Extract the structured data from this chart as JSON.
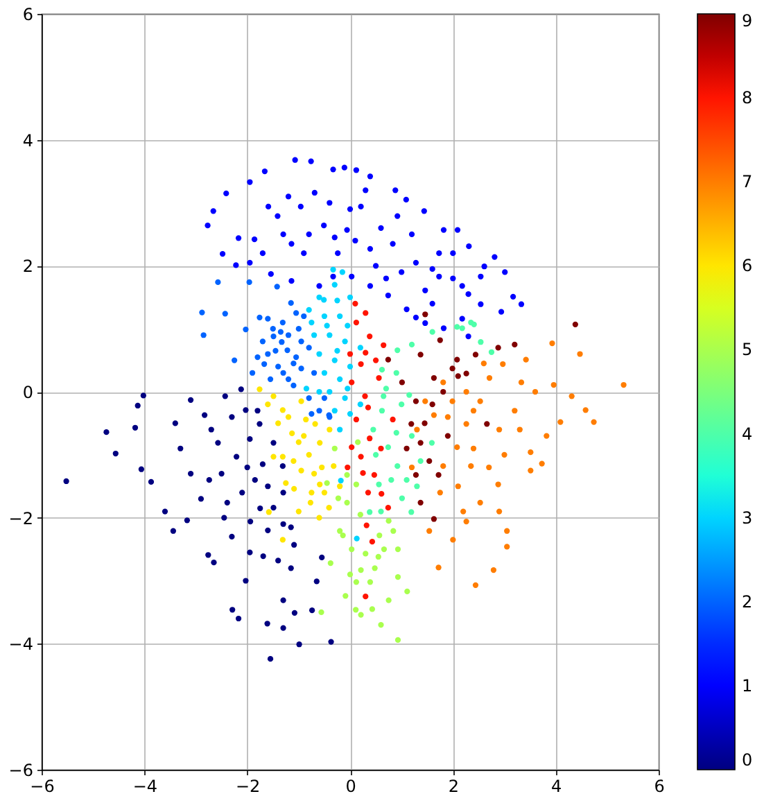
{
  "chart_data": {
    "type": "scatter",
    "xlim": [
      -6,
      6
    ],
    "ylim": [
      -6,
      6
    ],
    "xticks": [
      -6,
      -4,
      -2,
      0,
      2,
      4,
      6
    ],
    "yticks": [
      -6,
      -4,
      -2,
      0,
      2,
      4,
      6
    ],
    "grid": true,
    "marker": "circle",
    "clim": [
      0,
      9
    ],
    "cticks": [
      0,
      1,
      2,
      3,
      4,
      5,
      6,
      7,
      8,
      9
    ],
    "series": [
      {
        "x": [
          -5.52,
          -4.74,
          -4.56,
          -4.02,
          -4.13,
          -4.18,
          -4.06,
          -3.87,
          -3.6,
          -3.44,
          -3.1,
          -2.83,
          -2.74,
          -3.17,
          -2.65,
          -2.29,
          -2.17,
          -2.03,
          -1.55,
          -1.61,
          -1.3,
          -0.99,
          -1.08,
          -0.74,
          -0.37,
          -0.65,
          -1.3,
          -0.55,
          -2.43,
          -2.12,
          -2.03,
          -1.76,
          -1.49,
          -1.31,
          -1.3,
          -1.49,
          -1.94,
          -2.39,
          -2.21,
          -1.85,
          -2.57,
          -1.09,
          -1.4,
          -1.69,
          -1.15,
          -2.0,
          -1.6,
          -2.76,
          -3.3,
          -1.8,
          -2.3,
          -1.95,
          -2.5,
          -2.1,
          -1.75,
          -1.6,
          -2.3,
          -1.95,
          -2.9,
          -3.1,
          -2.7,
          -1.7,
          -1.3,
          -1.15,
          -2.45,
          -3.4
        ],
        "values": [
          -1.42,
          -0.64,
          -0.98,
          -0.06,
          -0.22,
          -0.57,
          -1.23,
          -1.43,
          -1.9,
          -2.21,
          -0.13,
          -0.37,
          -1.4,
          -2.04,
          -2.71,
          -3.46,
          -3.6,
          -3.0,
          -4.24,
          -3.68,
          -3.75,
          -4.01,
          -3.51,
          -3.47,
          -3.97,
          -3.01,
          -3.31,
          -2.63,
          -0.07,
          0.04,
          -0.29,
          -0.51,
          -0.81,
          -1.18,
          -1.6,
          -1.84,
          -2.06,
          -1.76,
          -1.03,
          -1.4,
          -0.81,
          -2.43,
          -2.68,
          -2.61,
          -2.15,
          -1.2,
          -1.5,
          -2.59,
          -0.9,
          -0.3,
          -0.4,
          -0.75,
          -1.3,
          -1.6,
          -1.85,
          -2.2,
          -2.3,
          -2.55,
          -1.7,
          -1.3,
          -0.6,
          -1.15,
          -2.1,
          -2.8,
          -2.0,
          -0.5
        ],
        "cvalues": [
          0,
          0,
          0,
          0,
          0,
          0,
          0,
          0,
          0,
          0,
          0,
          0,
          0,
          0,
          0,
          0,
          0,
          0,
          0,
          0,
          0,
          0,
          0,
          0,
          0,
          0,
          0,
          0,
          0,
          0,
          0,
          0,
          0,
          0,
          0,
          0,
          0,
          0,
          0,
          0,
          0,
          0,
          0,
          0,
          0,
          0,
          0,
          0,
          0,
          0,
          0,
          0,
          0,
          0,
          0,
          0,
          0,
          0,
          0,
          0,
          0,
          0,
          0,
          0,
          0,
          0
        ]
      },
      {
        "x": [
          -2.77,
          -2.66,
          -2.41,
          -1.95,
          -1.66,
          -1.07,
          -0.76,
          -0.33,
          -0.11,
          0.12,
          0.39,
          0.88,
          1.09,
          1.44,
          1.82,
          2.09,
          2.31,
          2.61,
          2.81,
          3.01,
          3.33,
          3.17,
          2.94,
          2.54,
          2.18,
          1.82,
          1.46,
          1.1,
          0.74,
          0.39,
          0.03,
          -0.33,
          -0.6,
          -1.14,
          -1.54,
          -1.95,
          -2.22,
          -2.48,
          -2.17,
          -1.41,
          -0.96,
          -0.51,
          -0.06,
          0.39,
          0.83,
          1.28,
          1.73,
          1.46,
          0.21,
          -0.69,
          -1.59,
          -1.86,
          -1.14,
          0.92,
          2.18,
          2.54,
          1.73,
          -0.24,
          1.28,
          2.3,
          -1.2,
          -0.8,
          -0.4,
          0.0,
          0.1,
          0.6,
          0.5,
          1.0,
          1.2,
          1.6,
          2.0,
          2.0,
          2.3,
          -1.7,
          -1.3,
          -0.9,
          -0.3,
          0.3,
          0.7,
          1.6
        ],
        "values": [
          2.64,
          2.87,
          3.15,
          3.33,
          3.5,
          3.68,
          3.66,
          3.53,
          3.56,
          3.52,
          3.42,
          3.2,
          3.05,
          2.87,
          2.57,
          2.57,
          2.31,
          1.99,
          2.14,
          1.9,
          1.39,
          1.51,
          1.27,
          1.39,
          1.16,
          1.01,
          1.09,
          1.31,
          1.53,
          1.68,
          1.83,
          1.83,
          1.68,
          1.76,
          1.87,
          2.05,
          2.01,
          2.19,
          2.44,
          2.79,
          2.94,
          2.64,
          2.57,
          2.27,
          2.35,
          2.05,
          1.83,
          1.61,
          2.94,
          3.16,
          2.94,
          2.42,
          2.35,
          2.79,
          1.68,
          1.83,
          2.2,
          2.2,
          1.18,
          0.88,
          3.1,
          2.5,
          3.0,
          2.9,
          2.4,
          2.6,
          2.0,
          1.9,
          2.5,
          1.95,
          1.8,
          2.2,
          1.55,
          2.2,
          2.5,
          2.2,
          2.45,
          3.2,
          1.8,
          1.4
        ],
        "cvalues": [
          1,
          1,
          1,
          1,
          1,
          1,
          1,
          1,
          1,
          1,
          1,
          1,
          1,
          1,
          1,
          1,
          1,
          1,
          1,
          1,
          1,
          1,
          1,
          1,
          1,
          1,
          1,
          1,
          1,
          1,
          1,
          1,
          1,
          1,
          1,
          1,
          1,
          1,
          1,
          1,
          1,
          1,
          1,
          1,
          1,
          1,
          1,
          1,
          1,
          1,
          1,
          1,
          1,
          1,
          1,
          1,
          1,
          1,
          1,
          1,
          1,
          1,
          1,
          1,
          1,
          1,
          1,
          1,
          1,
          1,
          1,
          1,
          1,
          1,
          1,
          1,
          1,
          1,
          1,
          1
        ]
      },
      {
        "x": [
          -2.88,
          -2.85,
          -2.57,
          -2.43,
          -2.25,
          -2.03,
          -1.96,
          -1.76,
          -1.6,
          -1.42,
          -1.15,
          -1.49,
          -1.33,
          -1.22,
          -0.95,
          -1.67,
          -1.31,
          -1.0,
          -1.7,
          -1.4,
          -1.1,
          -0.8,
          -0.8,
          -0.6,
          -0.4,
          -0.5,
          -1.2,
          -1.9,
          -0.9,
          -1.6,
          -0.75,
          -0.41,
          -1.05,
          -1.35,
          -0.7,
          -1.5,
          -1.2,
          -0.95,
          -1.45,
          -1.1,
          -1.55,
          -1.8,
          -1.05,
          -1.3
        ],
        "values": [
          1.26,
          0.9,
          1.74,
          1.24,
          0.5,
          0.99,
          1.74,
          1.18,
          1.16,
          1.67,
          1.41,
          0.88,
          0.79,
          0.66,
          0.37,
          0.44,
          1.1,
          1.0,
          0.8,
          0.4,
          0.1,
          0.7,
          -0.1,
          -0.3,
          -0.4,
          -0.1,
          0.2,
          0.3,
          1.2,
          0.6,
          -0.35,
          -0.37,
          0.55,
          0.95,
          0.3,
          1.0,
          0.9,
          0.8,
          0.65,
          0.45,
          0.2,
          0.55,
          1.25,
          0.3
        ],
        "cvalues": [
          2,
          2,
          2,
          2,
          2,
          2,
          2,
          2,
          2,
          2,
          2,
          2,
          2,
          2,
          2,
          2,
          2,
          2,
          2,
          2,
          2,
          2,
          2,
          2,
          2,
          2,
          2,
          2,
          2,
          2,
          2,
          2,
          2,
          2,
          2,
          2,
          2,
          2,
          2,
          2,
          2,
          2,
          2,
          2
        ]
      },
      {
        "x": [
          -0.6,
          -0.3,
          0.0,
          -0.5,
          -0.2,
          -0.05,
          -0.7,
          -0.4,
          -0.1,
          0.2,
          -0.6,
          -0.3,
          0.0,
          -0.5,
          -0.2,
          -0.05,
          -0.4,
          -0.1,
          -0.3,
          0.0,
          -0.8,
          -0.85,
          -0.25,
          -0.15,
          -0.6,
          -0.2,
          0.2,
          -0.18,
          0.13,
          -0.33,
          -0.51,
          -0.75,
          -0.45,
          -0.25
        ],
        "values": [
          1.5,
          1.7,
          1.5,
          1.2,
          1.2,
          1.05,
          0.9,
          0.9,
          0.8,
          0.7,
          0.6,
          0.5,
          0.4,
          0.3,
          0.2,
          0.05,
          0.0,
          -0.1,
          -0.3,
          -0.35,
          1.3,
          0.05,
          1.45,
          1.9,
          0.0,
          -0.6,
          -0.2,
          -1.41,
          -2.33,
          1.94,
          1.46,
          1.1,
          1.05,
          0.65
        ],
        "cvalues": [
          3,
          3,
          3,
          3,
          3,
          3,
          3,
          3,
          3,
          3,
          3,
          3,
          3,
          3,
          3,
          3,
          3,
          3,
          3,
          3,
          3,
          3,
          3,
          3,
          3,
          3,
          3,
          3,
          3,
          3,
          3,
          3,
          3,
          3
        ]
      },
      {
        "x": [
          0.62,
          0.92,
          1.2,
          2.08,
          2.35,
          1.6,
          0.65,
          0.9,
          0.74,
          0.92,
          1.1,
          1.01,
          1.19,
          0.56,
          1.37,
          1.59,
          2.75,
          0.38,
          2.41,
          2.18,
          2.54,
          0.7,
          0.9,
          0.62,
          1.0,
          1.2,
          0.5,
          0.8,
          1.3,
          0.45,
          1.15,
          0.6
        ],
        "values": [
          0.35,
          0.66,
          0.75,
          1.03,
          1.1,
          0.95,
          -0.07,
          -0.65,
          -0.88,
          -1.18,
          -1.4,
          -1.69,
          -1.91,
          -1.47,
          -1.1,
          -0.81,
          0.63,
          -1.91,
          1.07,
          1.01,
          0.79,
          0.05,
          0.3,
          -0.3,
          -0.2,
          -0.7,
          -1.0,
          -1.4,
          -1.5,
          -0.6,
          -0.05,
          -1.9
        ],
        "cvalues": [
          4,
          4,
          4,
          4,
          4,
          4,
          4,
          4,
          4,
          4,
          4,
          4,
          4,
          4,
          4,
          4,
          4,
          4,
          4,
          4,
          4,
          4,
          4,
          4,
          4,
          4,
          4,
          4,
          4,
          4,
          4,
          4
        ]
      },
      {
        "x": [
          -0.2,
          0.03,
          0.21,
          0.39,
          0.48,
          0.66,
          0.93,
          1.11,
          0.75,
          0.43,
          0.21,
          0.93,
          -0.56,
          -0.38,
          -0.09,
          0.12,
          0.55,
          -0.06,
          0.12,
          -0.06,
          0.57,
          0.84,
          0.93,
          -0.23,
          -0.14,
          0.3,
          0.11,
          0.2,
          0.0,
          0.6,
          -0.3,
          0.15,
          -0.45,
          0.75
        ],
        "values": [
          -2.21,
          -2.5,
          -2.83,
          -3.02,
          -2.8,
          -2.5,
          -2.94,
          -3.17,
          -3.31,
          -3.45,
          -3.54,
          -3.94,
          -3.5,
          -2.72,
          -3.24,
          -3.02,
          -2.62,
          -1.76,
          -1.47,
          -1.32,
          -2.28,
          -2.21,
          -2.5,
          -1.69,
          -2.28,
          -2.57,
          -3.46,
          -1.95,
          -2.9,
          -3.7,
          -0.9,
          -0.8,
          -1.45,
          -2.05
        ],
        "cvalues": [
          5,
          5,
          5,
          5,
          5,
          5,
          5,
          5,
          5,
          5,
          5,
          5,
          5,
          5,
          5,
          5,
          5,
          5,
          5,
          5,
          5,
          5,
          5,
          5,
          5,
          5,
          5,
          5,
          5,
          5,
          5,
          5,
          5,
          5
        ]
      },
      {
        "x": [
          -1.76,
          -1.49,
          -1.31,
          -0.95,
          -0.68,
          -1.13,
          -1.31,
          -0.95,
          -0.59,
          -0.77,
          -0.41,
          -1.09,
          -1.49,
          -0.59,
          -0.32,
          -1.31,
          -1.58,
          -0.86,
          -1.2,
          -0.8,
          -1.0,
          -0.6,
          -1.4,
          -1.1,
          -0.4,
          -0.7,
          -1.6,
          -0.2,
          -1.0,
          -0.5,
          -0.9,
          -1.25,
          -0.55,
          -0.75
        ],
        "values": [
          0.04,
          -0.07,
          -0.29,
          -0.15,
          -0.51,
          -0.66,
          -1.03,
          -1.25,
          -1.47,
          -1.76,
          -1.84,
          -1.54,
          -1.03,
          -0.81,
          -1.18,
          -2.35,
          -1.91,
          -0.44,
          -0.4,
          -1.0,
          -1.9,
          -2.0,
          -0.5,
          -1.1,
          -0.6,
          -1.3,
          -0.2,
          -1.5,
          -0.8,
          -1.6,
          -0.7,
          -1.45,
          -1.2,
          -1.6
        ],
        "cvalues": [
          6,
          6,
          6,
          6,
          6,
          6,
          6,
          6,
          6,
          6,
          6,
          6,
          6,
          6,
          6,
          6,
          6,
          6,
          6,
          6,
          6,
          6,
          6,
          6,
          6,
          6,
          6,
          6,
          6,
          6,
          6,
          6,
          6,
          6
        ]
      },
      {
        "x": [
          5.32,
          4.74,
          4.58,
          4.47,
          3.93,
          3.96,
          4.31,
          4.09,
          3.82,
          3.51,
          3.73,
          3.51,
          3.33,
          3.42,
          2.97,
          2.71,
          2.53,
          2.26,
          2.08,
          1.81,
          2.35,
          2.88,
          2.53,
          2.26,
          2.0,
          1.72,
          2.44,
          2.79,
          3.05,
          3.05,
          1.54,
          1.2,
          1.46,
          1.63,
          1.99,
          1.81,
          2.26,
          2.6,
          2.9,
          3.2,
          2.1,
          1.3,
          3.0,
          2.4,
          1.9,
          2.4,
          2.7,
          2.2,
          3.3,
          1.75,
          2.9,
          3.6
        ],
        "values": [
          0.11,
          -0.48,
          -0.29,
          0.6,
          0.77,
          0.11,
          -0.07,
          -0.48,
          -0.7,
          -0.96,
          -1.14,
          -1.25,
          0.15,
          0.51,
          0.44,
          0.22,
          -0.15,
          -0.51,
          -0.88,
          -1.18,
          -1.18,
          -1.47,
          -1.76,
          -2.06,
          -2.35,
          -2.79,
          -3.07,
          -2.83,
          -2.46,
          -2.21,
          -2.21,
          -1.2,
          -0.15,
          -0.37,
          -0.15,
          0.15,
          0.0,
          0.45,
          -0.6,
          -0.3,
          -1.5,
          -0.6,
          -1.0,
          -0.9,
          -0.4,
          -0.3,
          -1.2,
          -1.9,
          -0.6,
          -1.6,
          -1.9,
          0.0
        ],
        "cvalues": [
          7,
          7,
          7,
          7,
          7,
          7,
          7,
          7,
          7,
          7,
          7,
          7,
          7,
          7,
          7,
          7,
          7,
          7,
          7,
          7,
          7,
          7,
          7,
          7,
          7,
          7,
          7,
          7,
          7,
          7,
          7,
          7,
          7,
          7,
          7,
          7,
          7,
          7,
          7,
          7,
          7,
          7,
          7,
          7,
          7,
          7,
          7,
          7,
          7,
          7,
          7,
          7
        ]
      },
      {
        "x": [
          0.12,
          0.38,
          0.65,
          0.21,
          0.03,
          0.29,
          0.56,
          0.12,
          0.38,
          0.21,
          0.47,
          0.61,
          0.74,
          0.03,
          0.25,
          0.43,
          0.83,
          0.32,
          0.3,
          0.1,
          0.3,
          0.5,
          0.3,
          0.0,
          0.35,
          0.6,
          0.35,
          -0.05
        ],
        "values": [
          1.1,
          0.88,
          0.74,
          0.44,
          0.15,
          -0.07,
          0.22,
          -0.44,
          -0.74,
          -1.03,
          -1.32,
          -1.62,
          -1.84,
          -0.88,
          -1.29,
          -2.38,
          -0.44,
          -2.12,
          -3.25,
          1.4,
          1.25,
          0.5,
          0.62,
          0.6,
          -0.25,
          -0.9,
          -1.6,
          -1.2
        ],
        "cvalues": [
          8,
          8,
          8,
          8,
          8,
          8,
          8,
          8,
          8,
          8,
          8,
          8,
          8,
          8,
          8,
          8,
          8,
          8,
          8,
          8,
          8,
          8,
          8,
          8,
          8,
          8,
          8,
          8
        ]
      },
      {
        "x": [
          1.75,
          1.37,
          2.08,
          2.44,
          2.88,
          3.2,
          4.38,
          1.01,
          1.63,
          2.26,
          1.28,
          1.19,
          1.37,
          1.54,
          1.72,
          1.37,
          1.63,
          1.28,
          2.66,
          1.99,
          0.74,
          1.81,
          1.46,
          1.45,
          1.1,
          1.9,
          2.1,
          1.6
        ],
        "values": [
          0.82,
          0.59,
          0.51,
          0.59,
          0.7,
          0.75,
          1.07,
          0.15,
          0.22,
          0.29,
          -0.15,
          -0.51,
          -0.81,
          -1.1,
          -1.32,
          -1.76,
          -2.02,
          -1.32,
          -0.51,
          0.37,
          0.51,
          0.0,
          1.23,
          -0.5,
          -0.9,
          -0.7,
          0.25,
          -0.2
        ],
        "cvalues": [
          9,
          9,
          9,
          9,
          9,
          9,
          9,
          9,
          9,
          9,
          9,
          9,
          9,
          9,
          9,
          9,
          9,
          9,
          9,
          9,
          9,
          9,
          9,
          9,
          9,
          9,
          9,
          9
        ]
      }
    ]
  }
}
